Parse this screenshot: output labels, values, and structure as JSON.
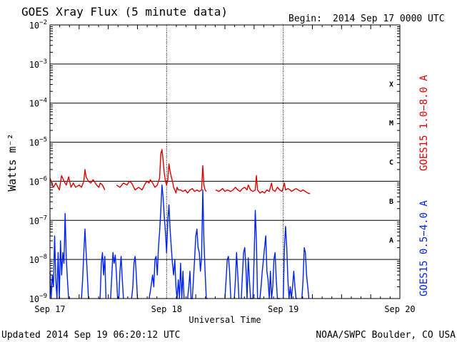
{
  "header": {
    "title": "GOES Xray Flux (5 minute data)",
    "begin_label": "Begin:",
    "begin_value": "2014 Sep 17 0000 UTC"
  },
  "footer": {
    "updated": "Updated 2014 Sep 19 06:20:12 UTC",
    "credit": "NOAA/SWPC Boulder, CO USA"
  },
  "colors": {
    "long_channel": "#dd0000",
    "short_channel": "#0022ee",
    "grid": "#000000",
    "background": "#ffffff"
  },
  "chart_data": {
    "type": "line",
    "title": "GOES Xray Flux (5 minute data)",
    "xlabel": "Universal Time",
    "ylabel": "Watts m⁻²",
    "yscale": "log",
    "ylim": [
      1e-09,
      0.01
    ],
    "xlim": [
      "2014-09-17 00:00",
      "2014-09-20 00:00"
    ],
    "x_unit": "days since 2014 Sep 17 0000 UTC",
    "x_ticks": [
      {
        "x": 0,
        "label": "Sep 17"
      },
      {
        "x": 1,
        "label": "Sep 18"
      },
      {
        "x": 2,
        "label": "Sep 19"
      },
      {
        "x": 3,
        "label": "Sep 20"
      }
    ],
    "y_ticks": [
      {
        "exp": -9,
        "mant": "10",
        "sup": "−9"
      },
      {
        "exp": -8,
        "mant": "10",
        "sup": "−8"
      },
      {
        "exp": -7,
        "mant": "10",
        "sup": "−7"
      },
      {
        "exp": -6,
        "mant": "10",
        "sup": "−6"
      },
      {
        "exp": -5,
        "mant": "10",
        "sup": "−5"
      },
      {
        "exp": -4,
        "mant": "10",
        "sup": "−4"
      },
      {
        "exp": -3,
        "mant": "10",
        "sup": "−3"
      },
      {
        "exp": -2,
        "mant": "10",
        "sup": "−2"
      }
    ],
    "flare_classes": [
      {
        "label": "A",
        "exp": -7.5
      },
      {
        "label": "B",
        "exp": -6.5
      },
      {
        "label": "C",
        "exp": -5.5
      },
      {
        "label": "M",
        "exp": -4.5
      },
      {
        "label": "X",
        "exp": -3.5
      }
    ],
    "grid": true,
    "right_legend": [
      {
        "label": "GOES15 1.0−8.0 A",
        "color": "#dd0000"
      },
      {
        "label": "GOES15 0.5−4.0 A",
        "color": "#0022ee"
      }
    ],
    "series": [
      {
        "name": "GOES15 1.0−8.0 A",
        "color": "#dd0000",
        "points": [
          [
            0.0,
            1.2e-06
          ],
          [
            0.03,
            7e-07
          ],
          [
            0.05,
            9e-07
          ],
          [
            0.08,
            6e-07
          ],
          [
            0.1,
            1.4e-06
          ],
          [
            0.12,
            1e-06
          ],
          [
            0.14,
            8e-07
          ],
          [
            0.16,
            1.3e-06
          ],
          [
            0.18,
            7e-07
          ],
          [
            0.2,
            9e-07
          ],
          [
            0.22,
            7e-07
          ],
          [
            0.25,
            8e-07
          ],
          [
            0.27,
            7e-07
          ],
          [
            0.29,
            1e-06
          ],
          [
            0.3,
            2e-06
          ],
          [
            0.31,
            1.3e-06
          ],
          [
            0.33,
            1e-06
          ],
          [
            0.35,
            9e-07
          ],
          [
            0.37,
            1.1e-06
          ],
          [
            0.4,
            8e-07
          ],
          [
            0.42,
            7e-07
          ],
          [
            0.43,
            9e-07
          ],
          [
            0.45,
            8e-07
          ],
          [
            0.47,
            6e-07
          ],
          null,
          [
            0.57,
            8e-07
          ],
          [
            0.6,
            7e-07
          ],
          [
            0.63,
            9e-07
          ],
          [
            0.66,
            8e-07
          ],
          [
            0.68,
            1e-06
          ],
          [
            0.7,
            9e-07
          ],
          [
            0.73,
            6e-07
          ],
          [
            0.76,
            7e-07
          ],
          [
            0.79,
            6e-07
          ],
          [
            0.81,
            8e-07
          ],
          [
            0.83,
            1e-06
          ],
          [
            0.85,
            9e-07
          ],
          [
            0.86,
            1.1e-06
          ],
          [
            0.88,
            9e-07
          ],
          [
            0.9,
            7e-07
          ],
          [
            0.92,
            8e-07
          ],
          [
            0.94,
            1.2e-06
          ],
          [
            0.95,
            5e-06
          ],
          [
            0.96,
            6.5e-06
          ],
          [
            0.97,
            3.5e-06
          ],
          [
            0.98,
            1.6e-06
          ],
          [
            0.99,
            1e-06
          ],
          [
            1.0,
            8e-07
          ],
          [
            1.01,
            1.1e-06
          ],
          [
            1.02,
            2.8e-06
          ],
          [
            1.03,
            1.8e-06
          ],
          [
            1.04,
            1.3e-06
          ],
          [
            1.05,
            1e-06
          ],
          [
            1.06,
            7e-07
          ],
          [
            1.07,
            6e-07
          ],
          [
            1.08,
            5e-07
          ],
          [
            1.09,
            7e-07
          ],
          [
            1.1,
            6e-07
          ],
          [
            1.12,
            6e-07
          ],
          [
            1.14,
            5.5e-07
          ],
          [
            1.16,
            6e-07
          ],
          [
            1.18,
            5e-07
          ],
          [
            1.2,
            6e-07
          ],
          [
            1.22,
            6.5e-07
          ],
          [
            1.24,
            5.5e-07
          ],
          [
            1.26,
            6e-07
          ],
          [
            1.28,
            5.5e-07
          ],
          [
            1.3,
            6e-07
          ],
          [
            1.31,
            2.5e-06
          ],
          [
            1.32,
            8e-07
          ],
          [
            1.33,
            6e-07
          ],
          [
            1.34,
            5.5e-07
          ],
          null,
          [
            1.42,
            6e-07
          ],
          [
            1.45,
            5.5e-07
          ],
          [
            1.48,
            6.5e-07
          ],
          [
            1.5,
            5.5e-07
          ],
          [
            1.52,
            6e-07
          ],
          [
            1.55,
            5.5e-07
          ],
          [
            1.57,
            6e-07
          ],
          [
            1.59,
            7e-07
          ],
          [
            1.61,
            6e-07
          ],
          [
            1.63,
            5.5e-07
          ],
          [
            1.65,
            6.5e-07
          ],
          [
            1.67,
            7e-07
          ],
          [
            1.69,
            6e-07
          ],
          [
            1.7,
            8e-07
          ],
          [
            1.72,
            6e-07
          ],
          [
            1.74,
            5.5e-07
          ],
          [
            1.76,
            6e-07
          ],
          [
            1.77,
            1.4e-06
          ],
          [
            1.78,
            6e-07
          ],
          [
            1.8,
            5e-07
          ],
          [
            1.82,
            5.5e-07
          ],
          [
            1.84,
            5e-07
          ],
          [
            1.86,
            6e-07
          ],
          [
            1.88,
            5.5e-07
          ],
          [
            1.9,
            9e-07
          ],
          [
            1.91,
            6e-07
          ],
          [
            1.93,
            5.5e-07
          ],
          [
            1.95,
            7e-07
          ],
          [
            1.97,
            6e-07
          ],
          [
            1.99,
            5.5e-07
          ],
          [
            2.01,
            9e-07
          ],
          [
            2.02,
            6e-07
          ],
          [
            2.04,
            6.5e-07
          ],
          [
            2.06,
            6e-07
          ],
          [
            2.07,
            5.5e-07
          ],
          [
            2.09,
            6e-07
          ],
          [
            2.11,
            6.5e-07
          ],
          [
            2.13,
            6e-07
          ],
          [
            2.15,
            5.5e-07
          ],
          [
            2.17,
            6e-07
          ],
          [
            2.19,
            5.5e-07
          ],
          [
            2.21,
            5e-07
          ],
          [
            2.23,
            4.8e-07
          ]
        ]
      },
      {
        "name": "GOES15 0.5−4.0 A",
        "color": "#0022ee",
        "points": [
          [
            0.0,
            5e-09
          ],
          [
            0.01,
            1e-09
          ],
          [
            0.02,
            4e-09
          ],
          [
            0.03,
            2e-09
          ],
          [
            0.04,
            4e-08
          ],
          [
            0.05,
            3e-09
          ],
          [
            0.06,
            1e-09
          ],
          [
            0.07,
            1.5e-08
          ],
          [
            0.08,
            1e-09
          ],
          [
            0.09,
            3e-08
          ],
          [
            0.1,
            4e-09
          ],
          [
            0.11,
            1.5e-08
          ],
          [
            0.12,
            8e-09
          ],
          [
            0.13,
            1.5e-07
          ],
          [
            0.14,
            1e-08
          ],
          [
            0.15,
            3e-09
          ],
          [
            0.16,
            1e-09
          ],
          [
            0.17,
            1e-09
          ],
          null,
          [
            0.27,
            1e-09
          ],
          [
            0.28,
            3e-09
          ],
          [
            0.29,
            1.5e-08
          ],
          [
            0.3,
            6e-08
          ],
          [
            0.31,
            1.5e-08
          ],
          [
            0.32,
            4e-09
          ],
          [
            0.33,
            1e-09
          ],
          [
            0.34,
            1e-09
          ],
          null,
          [
            0.42,
            1e-09
          ],
          [
            0.43,
            1e-09
          ],
          [
            0.44,
            8e-09
          ],
          [
            0.45,
            1.5e-08
          ],
          [
            0.46,
            4e-09
          ],
          [
            0.47,
            1.2e-08
          ],
          [
            0.48,
            1e-09
          ],
          null,
          [
            0.52,
            1e-09
          ],
          [
            0.53,
            4e-09
          ],
          [
            0.54,
            1.5e-08
          ],
          [
            0.55,
            8e-09
          ],
          [
            0.56,
            1.3e-08
          ],
          [
            0.57,
            4e-09
          ],
          [
            0.58,
            1e-09
          ],
          [
            0.59,
            1e-09
          ],
          [
            0.6,
            5e-09
          ],
          [
            0.61,
            1.2e-08
          ],
          [
            0.62,
            3e-09
          ],
          [
            0.63,
            1e-09
          ],
          null,
          [
            0.7,
            1e-09
          ],
          [
            0.71,
            2e-09
          ],
          [
            0.72,
            8e-09
          ],
          [
            0.73,
            1.2e-08
          ],
          [
            0.74,
            4e-09
          ],
          [
            0.75,
            1e-09
          ],
          [
            0.76,
            1e-09
          ],
          null,
          [
            0.85,
            1e-09
          ],
          [
            0.86,
            1.5e-09
          ],
          [
            0.88,
            4e-09
          ],
          [
            0.89,
            2e-09
          ],
          [
            0.9,
            1e-08
          ],
          [
            0.91,
            1.2e-08
          ],
          [
            0.92,
            4e-09
          ],
          [
            0.93,
            2e-08
          ],
          [
            0.94,
            5e-08
          ],
          [
            0.95,
            1.8e-07
          ],
          [
            0.96,
            8e-07
          ],
          [
            0.97,
            4e-07
          ],
          [
            0.98,
            1.2e-07
          ],
          [
            0.99,
            5e-08
          ],
          [
            1.0,
            1.5e-08
          ],
          [
            1.01,
            1e-07
          ],
          [
            1.02,
            2.5e-07
          ],
          [
            1.03,
            6e-08
          ],
          [
            1.04,
            2e-08
          ],
          [
            1.05,
            8e-09
          ],
          [
            1.06,
            4e-09
          ],
          [
            1.07,
            1e-08
          ],
          [
            1.08,
            2e-09
          ],
          [
            1.09,
            1e-09
          ],
          [
            1.1,
            3e-09
          ],
          [
            1.11,
            1e-09
          ],
          [
            1.12,
            8e-09
          ],
          [
            1.13,
            1e-09
          ],
          [
            1.14,
            5e-09
          ],
          [
            1.15,
            1e-09
          ],
          null,
          [
            1.18,
            1e-09
          ],
          [
            1.19,
            2e-09
          ],
          [
            1.2,
            5e-09
          ],
          [
            1.21,
            1e-09
          ],
          [
            1.22,
            1e-09
          ],
          [
            1.23,
            3e-09
          ],
          [
            1.24,
            1e-08
          ],
          [
            1.25,
            4e-08
          ],
          [
            1.26,
            6e-08
          ],
          [
            1.27,
            2e-08
          ],
          [
            1.28,
            1.5e-08
          ],
          [
            1.29,
            5e-09
          ],
          [
            1.3,
            1.2e-08
          ],
          [
            1.31,
            6e-07
          ],
          [
            1.32,
            3e-08
          ],
          [
            1.33,
            5e-09
          ],
          [
            1.34,
            1e-09
          ],
          [
            1.35,
            1e-09
          ],
          null,
          [
            1.5,
            1e-09
          ],
          [
            1.51,
            3e-09
          ],
          [
            1.52,
            1e-08
          ],
          [
            1.53,
            1.2e-08
          ],
          [
            1.54,
            5e-09
          ],
          [
            1.55,
            1e-09
          ],
          null,
          [
            1.58,
            1e-09
          ],
          [
            1.59,
            3e-09
          ],
          [
            1.6,
            1.5e-08
          ],
          [
            1.61,
            4e-09
          ],
          [
            1.62,
            1e-09
          ],
          null,
          [
            1.64,
            1e-09
          ],
          [
            1.65,
            4e-09
          ],
          [
            1.66,
            1.5e-08
          ],
          [
            1.67,
            2e-08
          ],
          [
            1.68,
            6e-09
          ],
          [
            1.69,
            1e-09
          ],
          [
            1.7,
            1.1e-08
          ],
          [
            1.71,
            3e-09
          ],
          [
            1.72,
            1e-09
          ],
          [
            1.74,
            1e-09
          ],
          [
            1.75,
            1e-08
          ],
          [
            1.76,
            1.8e-07
          ],
          [
            1.77,
            3e-08
          ],
          [
            1.78,
            1e-09
          ],
          [
            1.8,
            1e-09
          ],
          [
            1.81,
            2e-09
          ],
          [
            1.82,
            5e-09
          ],
          [
            1.83,
            1e-08
          ],
          [
            1.84,
            2e-08
          ],
          [
            1.85,
            4e-08
          ],
          [
            1.86,
            5e-09
          ],
          [
            1.87,
            3e-09
          ],
          [
            1.88,
            1e-09
          ],
          [
            1.89,
            5e-09
          ],
          [
            1.9,
            1e-09
          ],
          [
            1.91,
            2e-09
          ],
          [
            1.92,
            1e-08
          ],
          [
            1.93,
            1.5e-08
          ],
          [
            1.94,
            3e-09
          ],
          [
            1.95,
            1e-09
          ],
          [
            1.96,
            1e-09
          ],
          [
            1.97,
            1e-09
          ],
          null,
          [
            2.0,
            1e-09
          ],
          [
            2.01,
            2e-08
          ],
          [
            2.02,
            7e-08
          ],
          [
            2.03,
            2e-08
          ],
          [
            2.04,
            3e-09
          ],
          [
            2.05,
            1e-09
          ],
          [
            2.06,
            2e-09
          ],
          [
            2.07,
            1e-09
          ],
          [
            2.08,
            2e-09
          ],
          [
            2.09,
            5e-09
          ],
          [
            2.1,
            2e-09
          ],
          [
            2.11,
            1e-09
          ],
          [
            2.12,
            1e-09
          ],
          null,
          [
            2.16,
            1e-09
          ],
          [
            2.17,
            3e-09
          ],
          [
            2.18,
            2e-08
          ],
          [
            2.19,
            1.5e-08
          ],
          [
            2.2,
            4e-09
          ],
          [
            2.21,
            2e-09
          ],
          [
            2.22,
            1e-09
          ]
        ]
      }
    ]
  }
}
